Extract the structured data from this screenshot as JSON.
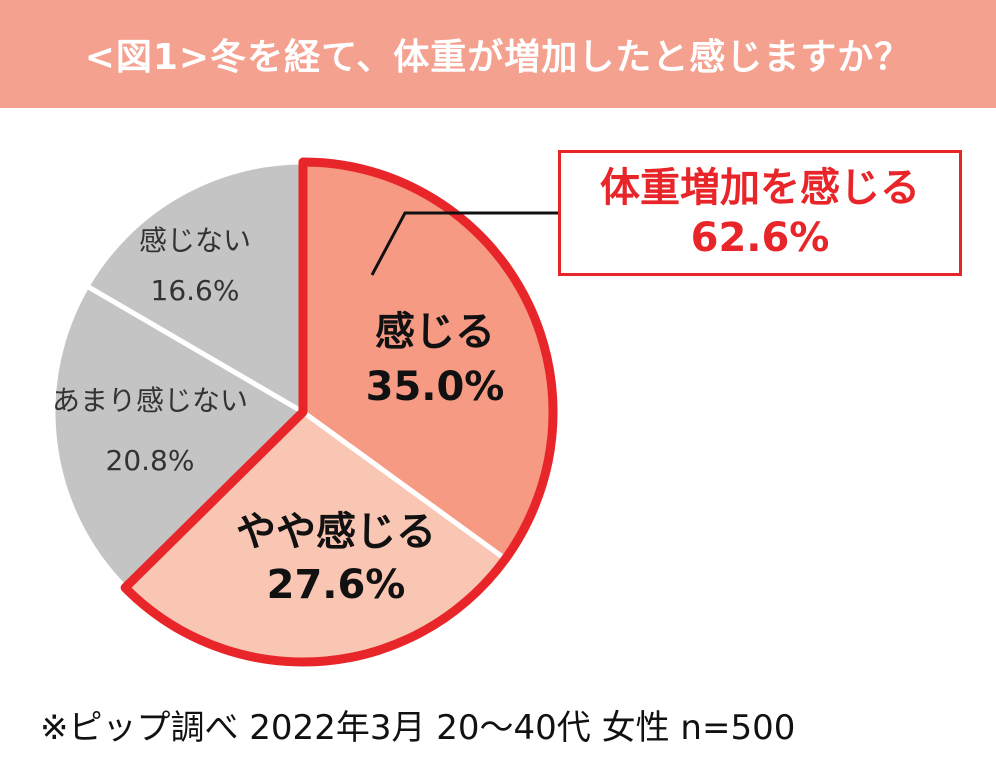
{
  "header": {
    "title": "<図1>冬を経て、体重が増加したと感じますか？"
  },
  "chart_data": {
    "type": "pie",
    "title": "<図1>冬を経て、体重が増加したと感じますか？",
    "unit": "%",
    "slices": [
      {
        "label": "感じる",
        "value": 35.0,
        "value_text": "35.0%",
        "color": "#f69a84",
        "highlight": true
      },
      {
        "label": "やや感じる",
        "value": 27.6,
        "value_text": "27.6%",
        "color": "#f9c6b3",
        "highlight": true
      },
      {
        "label": "あまり感じない",
        "value": 20.8,
        "value_text": "20.8%",
        "color": "#c4c4c4",
        "highlight": false
      },
      {
        "label": "感じない",
        "value": 16.6,
        "value_text": "16.6%",
        "color": "#c4c4c4",
        "highlight": false
      }
    ],
    "highlight_color": "#e8262a",
    "callout": {
      "label": "体重増加を感じる",
      "value": 62.6,
      "value_text": "62.6%"
    }
  },
  "footer": {
    "note": "※ピップ調べ 2022年3月 20〜40代 女性 n=500"
  }
}
